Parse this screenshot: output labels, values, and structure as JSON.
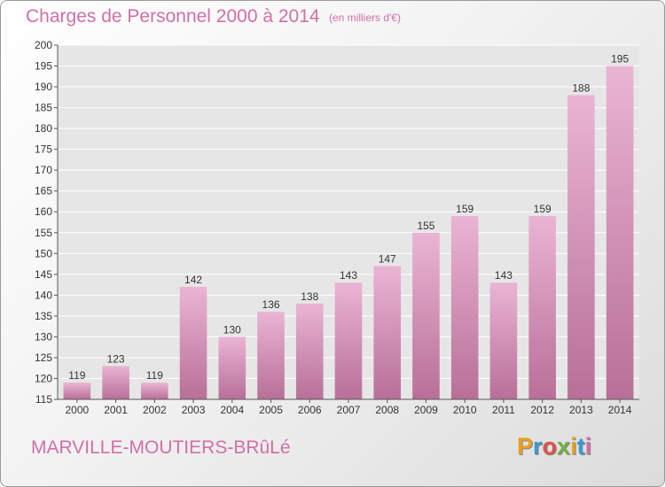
{
  "header": {
    "title": "Charges de Personnel 2000 à 2014",
    "unit_note": "(en milliers d'€)"
  },
  "footer": {
    "commune": "MARVILLE-MOUTIERS-BRûLé",
    "brand": [
      "P",
      "r",
      "o",
      "x",
      "i",
      "t",
      "i"
    ],
    "brand_colors": [
      "#e8a020",
      "#3a9ad0",
      "#e05050",
      "#70b040",
      "#e8a020",
      "#3a9ad0",
      "#d070a8"
    ]
  },
  "chart_data": {
    "type": "bar",
    "categories": [
      "2000",
      "2001",
      "2002",
      "2003",
      "2004",
      "2005",
      "2006",
      "2007",
      "2008",
      "2009",
      "2010",
      "2011",
      "2012",
      "2013",
      "2014"
    ],
    "values": [
      119,
      123,
      119,
      142,
      130,
      136,
      138,
      143,
      147,
      155,
      159,
      143,
      159,
      188,
      195
    ],
    "value_labels": [
      "119",
      "123",
      "119",
      "142",
      "130",
      "136",
      "138",
      "143",
      "147",
      "155",
      "159",
      "143",
      "159",
      "188",
      "195"
    ],
    "ylim": [
      115,
      200
    ],
    "yticks": [
      115,
      120,
      125,
      130,
      135,
      140,
      145,
      150,
      155,
      160,
      165,
      170,
      175,
      180,
      185,
      190,
      195,
      200
    ],
    "ytick_labels": [
      "115",
      "120",
      "125",
      "130",
      "135",
      "140",
      "145",
      "150",
      "155",
      "160",
      "165",
      "170",
      "175",
      "180",
      "185",
      "190",
      "195",
      "200"
    ],
    "grid": true,
    "colors": {
      "bar_light": "#eab4d4",
      "bar_dark": "#b86f98",
      "grid": "#ffffff",
      "plot_bg": "#e6e6e6",
      "axis": "#555555",
      "text": "#333333"
    }
  }
}
